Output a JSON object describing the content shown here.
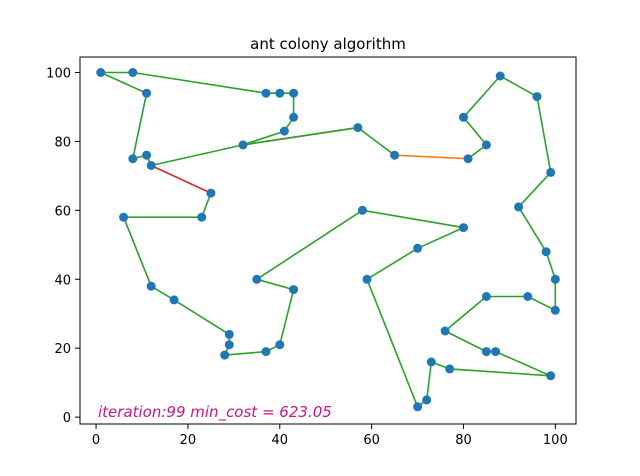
{
  "chart_data": {
    "type": "line",
    "title": "ant colony algorithm",
    "xlabel": "",
    "ylabel": "",
    "xlim": [
      -3.5,
      104.5
    ],
    "ylim": [
      -2,
      104.5
    ],
    "xticks": [
      0,
      20,
      40,
      60,
      80,
      100
    ],
    "yticks": [
      0,
      20,
      40,
      60,
      80,
      100
    ],
    "grid": false,
    "annotation": "iteration:99 min_cost = 623.05",
    "colors": {
      "point": "#1f77b4",
      "current_path": "#ff7f0e",
      "best_path": "#2ca02c",
      "alt_segment": "#d62728",
      "annotation": "#c71585"
    },
    "cities": [
      [
        1,
        100
      ],
      [
        8,
        100
      ],
      [
        11,
        94
      ],
      [
        8,
        75
      ],
      [
        11,
        76
      ],
      [
        12,
        73
      ],
      [
        25,
        65
      ],
      [
        23,
        58
      ],
      [
        6,
        58
      ],
      [
        12,
        38
      ],
      [
        17,
        34
      ],
      [
        29,
        24
      ],
      [
        29,
        21
      ],
      [
        28,
        18
      ],
      [
        37,
        19
      ],
      [
        40,
        21
      ],
      [
        43,
        37
      ],
      [
        35,
        40
      ],
      [
        58,
        60
      ],
      [
        80,
        55
      ],
      [
        70,
        49
      ],
      [
        59,
        40
      ],
      [
        70,
        3
      ],
      [
        72,
        5
      ],
      [
        73,
        16
      ],
      [
        77,
        14
      ],
      [
        99,
        12
      ],
      [
        87,
        19
      ],
      [
        85,
        19
      ],
      [
        76,
        25
      ],
      [
        85,
        35
      ],
      [
        94,
        35
      ],
      [
        100,
        31
      ],
      [
        100,
        40
      ],
      [
        98,
        48
      ],
      [
        92,
        61
      ],
      [
        99,
        71
      ],
      [
        96,
        93
      ],
      [
        88,
        99
      ],
      [
        80,
        87
      ],
      [
        85,
        79
      ],
      [
        81,
        75
      ],
      [
        65,
        76
      ],
      [
        57,
        84
      ],
      [
        32,
        79
      ],
      [
        41,
        83
      ],
      [
        43,
        87
      ],
      [
        43,
        94
      ],
      [
        40,
        94
      ],
      [
        37,
        94
      ]
    ],
    "best_path": [
      0,
      2,
      3,
      4,
      5,
      44,
      45,
      46,
      47,
      48,
      49,
      1,
      0
    ],
    "best_path_lower": [
      44,
      43,
      42
    ],
    "best_path_loop": [
      6,
      7,
      8,
      9,
      10,
      11,
      12,
      13,
      14,
      15,
      16,
      17,
      18,
      19,
      20,
      21,
      22,
      23,
      24,
      25,
      26,
      27,
      28,
      29,
      30,
      31,
      32,
      33,
      34,
      35,
      36,
      37,
      38,
      39,
      40,
      41
    ],
    "alt_segments": [
      [
        5,
        6
      ],
      [
        44,
        43
      ]
    ],
    "current_segments": [
      [
        42,
        41
      ]
    ]
  }
}
